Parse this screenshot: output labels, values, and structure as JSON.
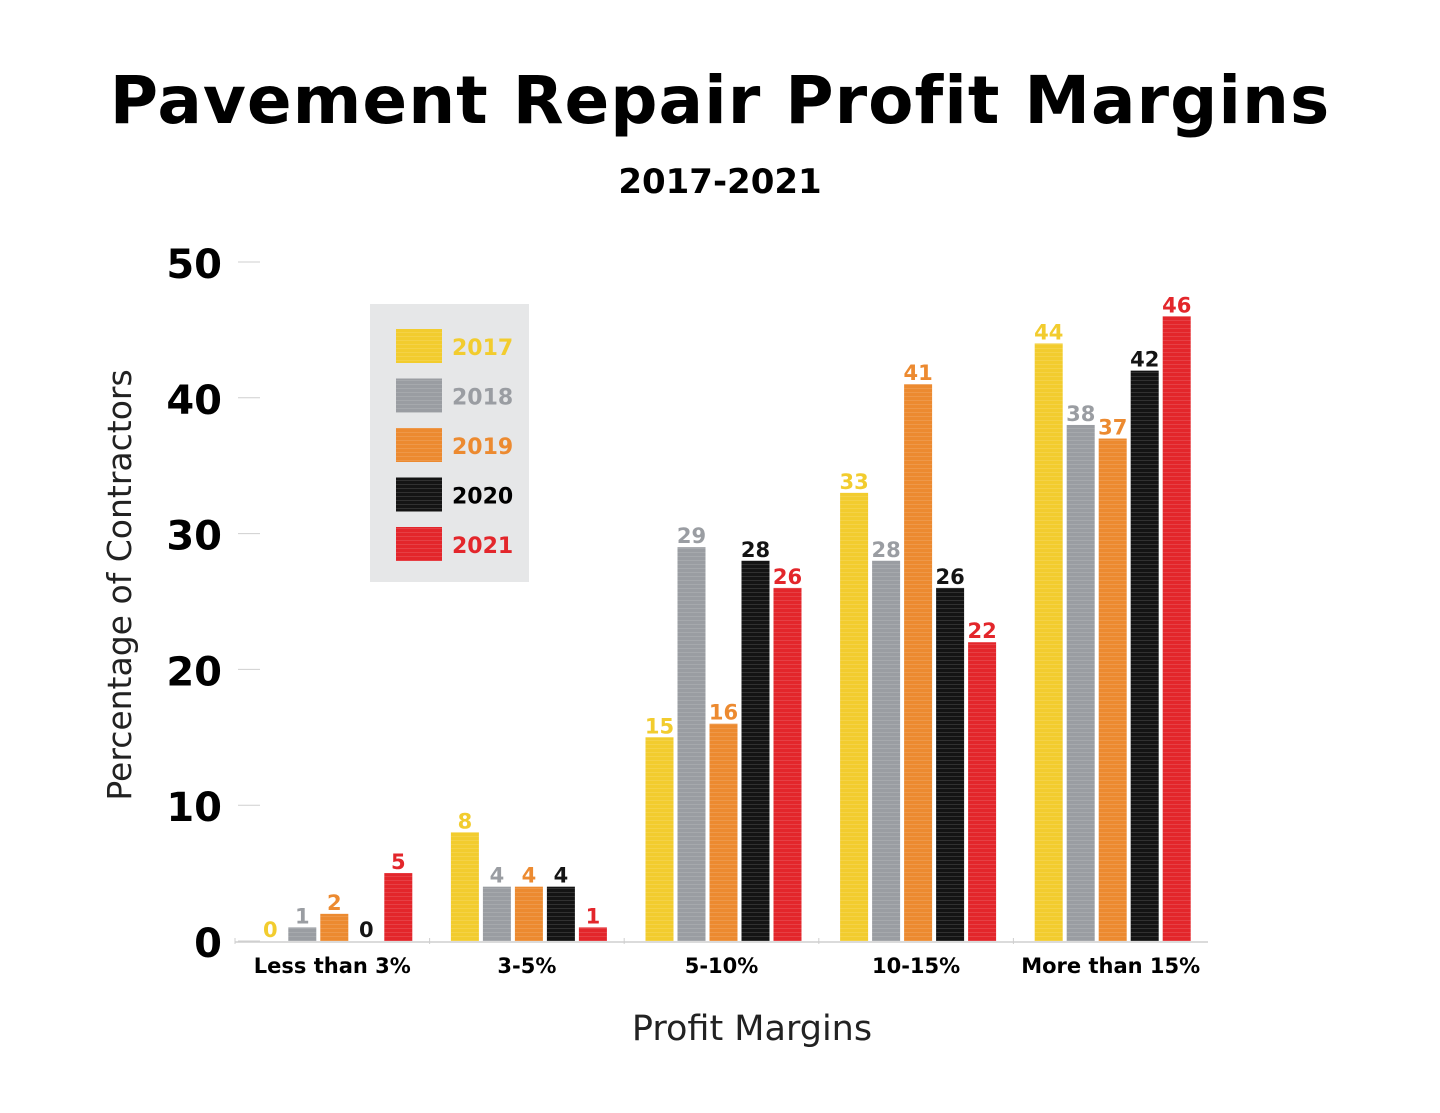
{
  "chart_data": {
    "type": "bar",
    "title": "Pavement Repair Profit Margins",
    "subtitle": "2017-2021",
    "xlabel": "Profit Margins",
    "ylabel": "Percentage of Contractors",
    "ylim": [
      0,
      50
    ],
    "yticks": [
      0,
      10,
      20,
      30,
      40,
      50
    ],
    "grid": false,
    "legend_position": "top-left",
    "categories": [
      "Less than 3%",
      "3-5%",
      "5-10%",
      "10-15%",
      "More than 15%"
    ],
    "series": [
      {
        "name": "2017",
        "color": "#f2cc2e",
        "values": [
          0,
          8,
          15,
          33,
          44
        ]
      },
      {
        "name": "2018",
        "color": "#9a9da2",
        "values": [
          1,
          4,
          29,
          28,
          38
        ]
      },
      {
        "name": "2019",
        "color": "#ec8a30",
        "values": [
          2,
          4,
          16,
          41,
          37
        ]
      },
      {
        "name": "2020",
        "color": "#141414",
        "values": [
          0,
          4,
          28,
          26,
          42
        ]
      },
      {
        "name": "2021",
        "color": "#e3262b",
        "values": [
          5,
          1,
          26,
          22,
          46
        ]
      }
    ],
    "legend_background": "#e6e7e8"
  }
}
